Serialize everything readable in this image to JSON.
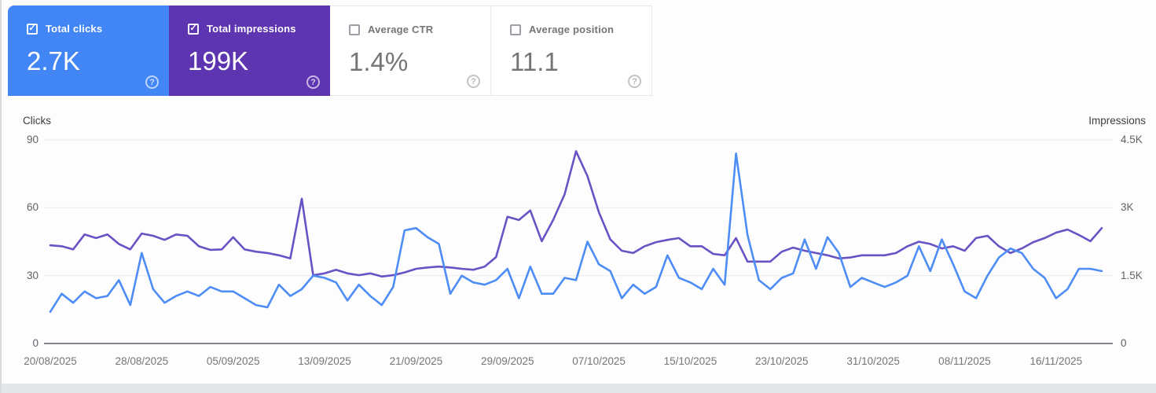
{
  "icons": {
    "check": "✓",
    "help": "?"
  },
  "colors": {
    "clicks_card_bg": "#4285f4",
    "impressions_card_bg": "#5e35b1",
    "clicks_line": "#4e8df5",
    "impressions_line": "#6a52c5",
    "gridline": "#ececec",
    "baseline": "#80868b"
  },
  "cards": [
    {
      "label": "Total clicks",
      "value": "2.7K",
      "checked": true
    },
    {
      "label": "Total impressions",
      "value": "199K",
      "checked": true
    },
    {
      "label": "Average CTR",
      "value": "1.4%",
      "checked": false
    },
    {
      "label": "Average position",
      "value": "11.1",
      "checked": false
    }
  ],
  "chart": {
    "left_axis": {
      "title": "Clicks",
      "max": 90,
      "ticks": [
        {
          "label": "90",
          "value": 90
        },
        {
          "label": "60",
          "value": 60
        },
        {
          "label": "30",
          "value": 30
        },
        {
          "label": "0",
          "value": 0
        }
      ]
    },
    "right_axis": {
      "title": "Impressions",
      "max": 4500,
      "ticks": [
        {
          "label": "4.5K",
          "value": 4500
        },
        {
          "label": "3K",
          "value": 3000
        },
        {
          "label": "1.5K",
          "value": 1500
        },
        {
          "label": "0",
          "value": 0
        }
      ]
    },
    "x_ticks": [
      {
        "label": "20/08/2025",
        "day": 0
      },
      {
        "label": "28/08/2025",
        "day": 8
      },
      {
        "label": "05/09/2025",
        "day": 16
      },
      {
        "label": "13/09/2025",
        "day": 24
      },
      {
        "label": "21/09/2025",
        "day": 32
      },
      {
        "label": "29/09/2025",
        "day": 40
      },
      {
        "label": "07/10/2025",
        "day": 48
      },
      {
        "label": "15/10/2025",
        "day": 56
      },
      {
        "label": "23/10/2025",
        "day": 64
      },
      {
        "label": "31/10/2025",
        "day": 72
      },
      {
        "label": "08/11/2025",
        "day": 80
      },
      {
        "label": "16/11/2025",
        "day": 88
      }
    ]
  },
  "chart_data": {
    "type": "line",
    "x_start_date": "20/08/2025",
    "x_end_date": "20/11/2025",
    "x_interval": "daily",
    "left_ylabel": "Clicks",
    "right_ylabel": "Impressions",
    "left_ylim": [
      0,
      90
    ],
    "right_ylim": [
      0,
      4500
    ],
    "grid": true,
    "legend_position": "none",
    "series": [
      {
        "name": "Impressions",
        "axis": "right",
        "color": "#6a52c5",
        "values": [
          2170,
          2150,
          2080,
          2410,
          2330,
          2410,
          2200,
          2080,
          2430,
          2380,
          2290,
          2410,
          2380,
          2150,
          2070,
          2080,
          2350,
          2080,
          2030,
          2000,
          1950,
          1880,
          3200,
          1510,
          1550,
          1630,
          1550,
          1510,
          1550,
          1480,
          1510,
          1570,
          1650,
          1680,
          1700,
          1680,
          1650,
          1630,
          1700,
          1910,
          2800,
          2730,
          2940,
          2260,
          2730,
          3300,
          4250,
          3700,
          2900,
          2300,
          2050,
          2000,
          2150,
          2240,
          2290,
          2330,
          2150,
          2150,
          1980,
          1950,
          2330,
          1810,
          1810,
          1810,
          2030,
          2120,
          2050,
          2000,
          1950,
          1880,
          1900,
          1950,
          1950,
          1950,
          2000,
          2150,
          2250,
          2200,
          2100,
          2150,
          2050,
          2330,
          2380,
          2150,
          2000,
          2100,
          2240,
          2330,
          2450,
          2520,
          2400,
          2260,
          2550
        ]
      },
      {
        "name": "Clicks",
        "axis": "left",
        "color": "#4e8df5",
        "values": [
          14,
          22,
          18,
          23,
          20,
          21,
          28,
          17,
          40,
          24,
          18,
          21,
          23,
          21,
          25,
          23,
          23,
          20,
          17,
          16,
          26,
          21,
          24,
          30,
          29,
          27,
          19,
          26,
          21,
          17,
          25,
          50,
          51,
          47,
          44,
          22,
          30,
          27,
          26,
          28,
          33,
          20,
          34,
          22,
          22,
          29,
          28,
          45,
          35,
          32,
          20,
          26,
          22,
          25,
          39,
          29,
          27,
          24,
          33,
          26,
          84,
          48,
          28,
          24,
          29,
          31,
          46,
          33,
          47,
          40,
          25,
          29,
          27,
          25,
          27,
          30,
          43,
          32,
          46,
          35,
          23,
          20,
          30,
          38,
          42,
          40,
          33,
          29,
          20,
          24,
          33,
          33,
          32
        ]
      }
    ]
  }
}
